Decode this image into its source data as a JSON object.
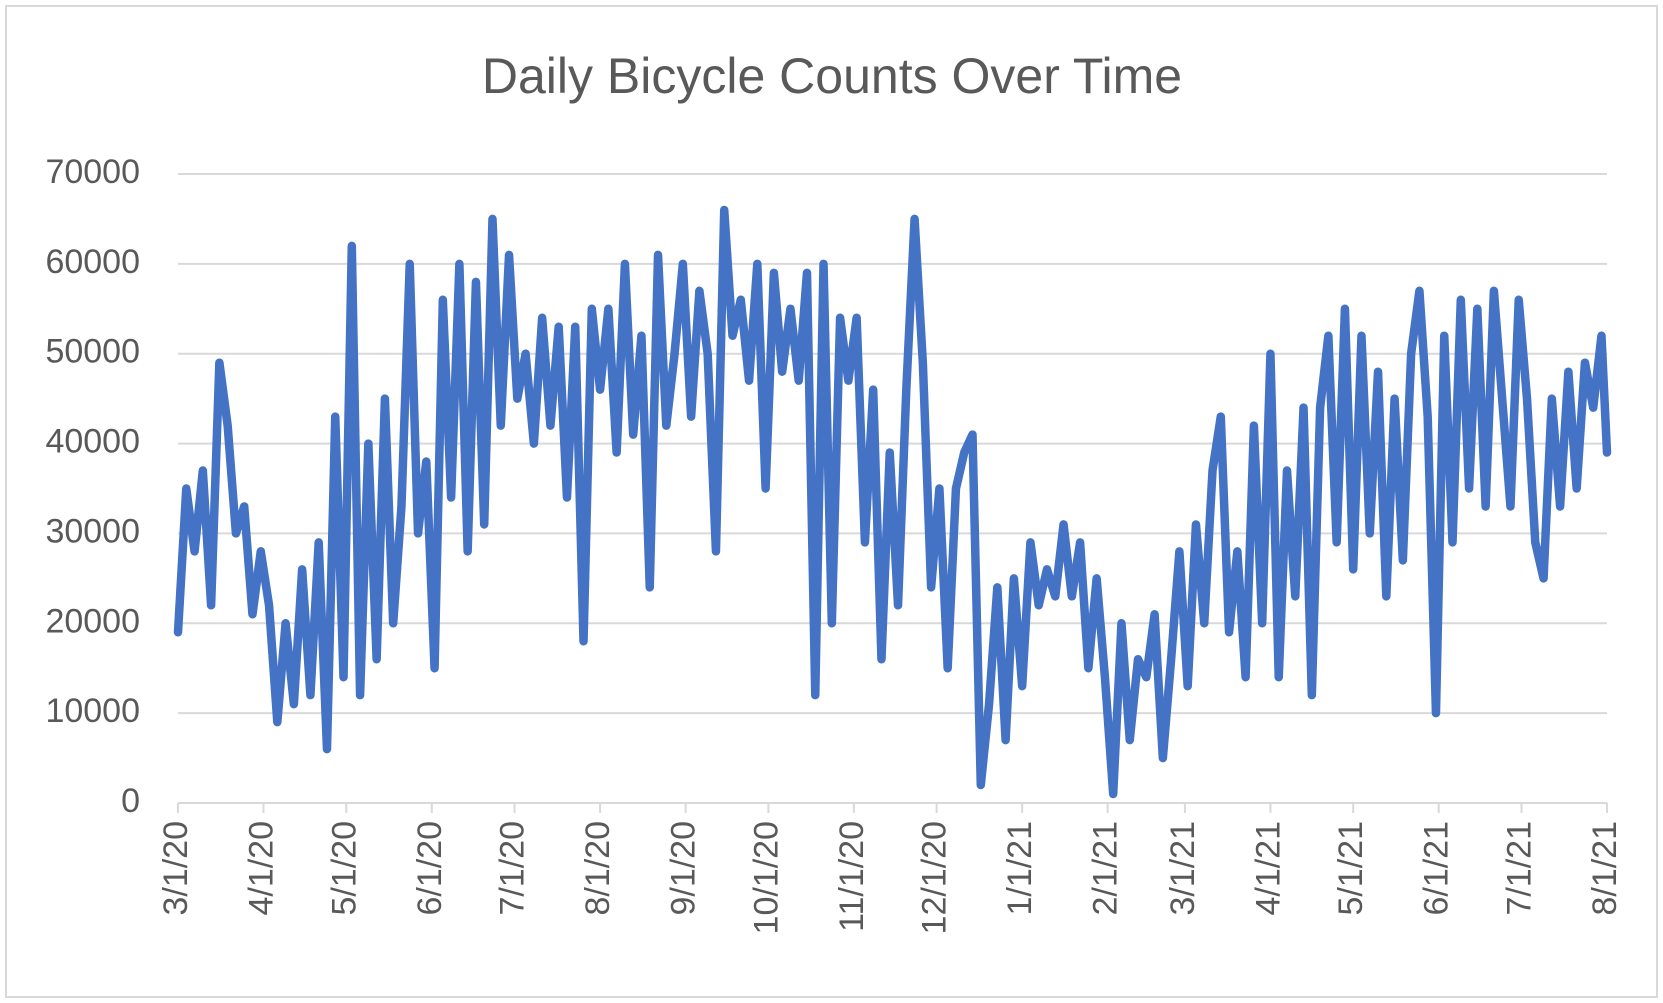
{
  "chart_data": {
    "type": "line",
    "title": "Daily Bicycle Counts Over Time",
    "color": "#4472c4",
    "grid": true,
    "x": [
      "3/1/20",
      "3/4/20",
      "3/7/20",
      "3/10/20",
      "3/13/20",
      "3/16/20",
      "3/19/20",
      "3/22/20",
      "3/25/20",
      "3/28/20",
      "3/31/20",
      "4/3/20",
      "4/6/20",
      "4/9/20",
      "4/12/20",
      "4/15/20",
      "4/18/20",
      "4/21/20",
      "4/24/20",
      "4/27/20",
      "4/30/20",
      "5/3/20",
      "5/6/20",
      "5/9/20",
      "5/12/20",
      "5/15/20",
      "5/18/20",
      "5/21/20",
      "5/24/20",
      "5/27/20",
      "5/30/20",
      "6/2/20",
      "6/5/20",
      "6/8/20",
      "6/11/20",
      "6/14/20",
      "6/17/20",
      "6/20/20",
      "6/23/20",
      "6/26/20",
      "6/29/20",
      "7/2/20",
      "7/5/20",
      "7/8/20",
      "7/11/20",
      "7/14/20",
      "7/17/20",
      "7/20/20",
      "7/23/20",
      "7/26/20",
      "7/29/20",
      "8/1/20",
      "8/4/20",
      "8/7/20",
      "8/10/20",
      "8/13/20",
      "8/16/20",
      "8/19/20",
      "8/22/20",
      "8/25/20",
      "8/28/20",
      "8/31/20",
      "9/3/20",
      "9/6/20",
      "9/9/20",
      "9/12/20",
      "9/15/20",
      "9/18/20",
      "9/21/20",
      "9/24/20",
      "9/27/20",
      "9/30/20",
      "10/3/20",
      "10/6/20",
      "10/9/20",
      "10/12/20",
      "10/15/20",
      "10/18/20",
      "10/21/20",
      "10/24/20",
      "10/27/20",
      "10/30/20",
      "11/2/20",
      "11/5/20",
      "11/8/20",
      "11/11/20",
      "11/14/20",
      "11/17/20",
      "11/20/20",
      "11/23/20",
      "11/26/20",
      "11/29/20",
      "12/2/20",
      "12/5/20",
      "12/8/20",
      "12/11/20",
      "12/14/20",
      "12/17/20",
      "12/20/20",
      "12/23/20",
      "12/26/20",
      "12/29/20",
      "1/1/21",
      "1/4/21",
      "1/7/21",
      "1/10/21",
      "1/13/21",
      "1/16/21",
      "1/19/21",
      "1/22/21",
      "1/25/21",
      "1/28/21",
      "1/31/21",
      "2/3/21",
      "2/6/21",
      "2/9/21",
      "2/12/21",
      "2/15/21",
      "2/18/21",
      "2/21/21",
      "2/24/21",
      "2/27/21",
      "3/2/21",
      "3/5/21",
      "3/8/21",
      "3/11/21",
      "3/14/21",
      "3/17/21",
      "3/20/21",
      "3/23/21",
      "3/26/21",
      "3/29/21",
      "4/1/21",
      "4/4/21",
      "4/7/21",
      "4/10/21",
      "4/13/21",
      "4/16/21",
      "4/19/21",
      "4/22/21",
      "4/25/21",
      "4/28/21",
      "5/1/21",
      "5/4/21",
      "5/7/21",
      "5/10/21",
      "5/13/21",
      "5/16/21",
      "5/19/21",
      "5/22/21",
      "5/25/21",
      "5/28/21",
      "5/31/21",
      "6/3/21",
      "6/6/21",
      "6/9/21",
      "6/12/21",
      "6/15/21",
      "6/18/21",
      "6/21/21",
      "6/24/21",
      "6/27/21",
      "6/30/21",
      "7/3/21",
      "7/6/21",
      "7/9/21",
      "7/12/21",
      "7/15/21",
      "7/18/21",
      "7/21/21",
      "7/24/21",
      "7/27/21",
      "7/30/21",
      "8/1/21"
    ],
    "values": [
      19000,
      35000,
      28000,
      37000,
      22000,
      49000,
      42000,
      30000,
      33000,
      21000,
      28000,
      22000,
      9000,
      20000,
      11000,
      26000,
      12000,
      29000,
      6000,
      43000,
      14000,
      62000,
      12000,
      40000,
      16000,
      45000,
      20000,
      33000,
      60000,
      30000,
      38000,
      15000,
      56000,
      34000,
      60000,
      28000,
      58000,
      31000,
      65000,
      42000,
      61000,
      45000,
      50000,
      40000,
      54000,
      42000,
      53000,
      34000,
      53000,
      18000,
      55000,
      46000,
      55000,
      39000,
      60000,
      41000,
      52000,
      24000,
      61000,
      42000,
      50000,
      60000,
      43000,
      57000,
      50000,
      28000,
      66000,
      52000,
      56000,
      47000,
      60000,
      35000,
      59000,
      48000,
      55000,
      47000,
      59000,
      12000,
      60000,
      20000,
      54000,
      47000,
      54000,
      29000,
      46000,
      16000,
      39000,
      22000,
      46000,
      65000,
      49000,
      24000,
      35000,
      15000,
      35000,
      39000,
      41000,
      2000,
      11000,
      24000,
      7000,
      25000,
      13000,
      29000,
      22000,
      26000,
      23000,
      31000,
      23000,
      29000,
      15000,
      25000,
      14000,
      1000,
      20000,
      7000,
      16000,
      14000,
      21000,
      5000,
      16000,
      28000,
      13000,
      31000,
      20000,
      37000,
      43000,
      19000,
      28000,
      14000,
      42000,
      20000,
      50000,
      14000,
      37000,
      23000,
      44000,
      12000,
      44000,
      52000,
      29000,
      55000,
      26000,
      52000,
      30000,
      48000,
      23000,
      45000,
      27000,
      50000,
      57000,
      43000,
      10000,
      52000,
      29000,
      56000,
      35000,
      55000,
      33000,
      57000,
      45000,
      33000,
      56000,
      45000,
      29000,
      25000,
      45000,
      33000,
      48000,
      35000,
      49000,
      44000,
      52000,
      39000
    ],
    "xlim": [
      "3/1/20",
      "8/1/21"
    ],
    "xticks": [
      "3/1/20",
      "4/1/20",
      "5/1/20",
      "6/1/20",
      "7/1/20",
      "8/1/20",
      "9/1/20",
      "10/1/20",
      "11/1/20",
      "12/1/20",
      "1/1/21",
      "2/1/21",
      "3/1/21",
      "4/1/21",
      "5/1/21",
      "6/1/21",
      "7/1/21",
      "8/1/21"
    ],
    "ylim": [
      0,
      70000
    ],
    "yticks": [
      0,
      10000,
      20000,
      30000,
      40000,
      50000,
      60000,
      70000
    ]
  }
}
